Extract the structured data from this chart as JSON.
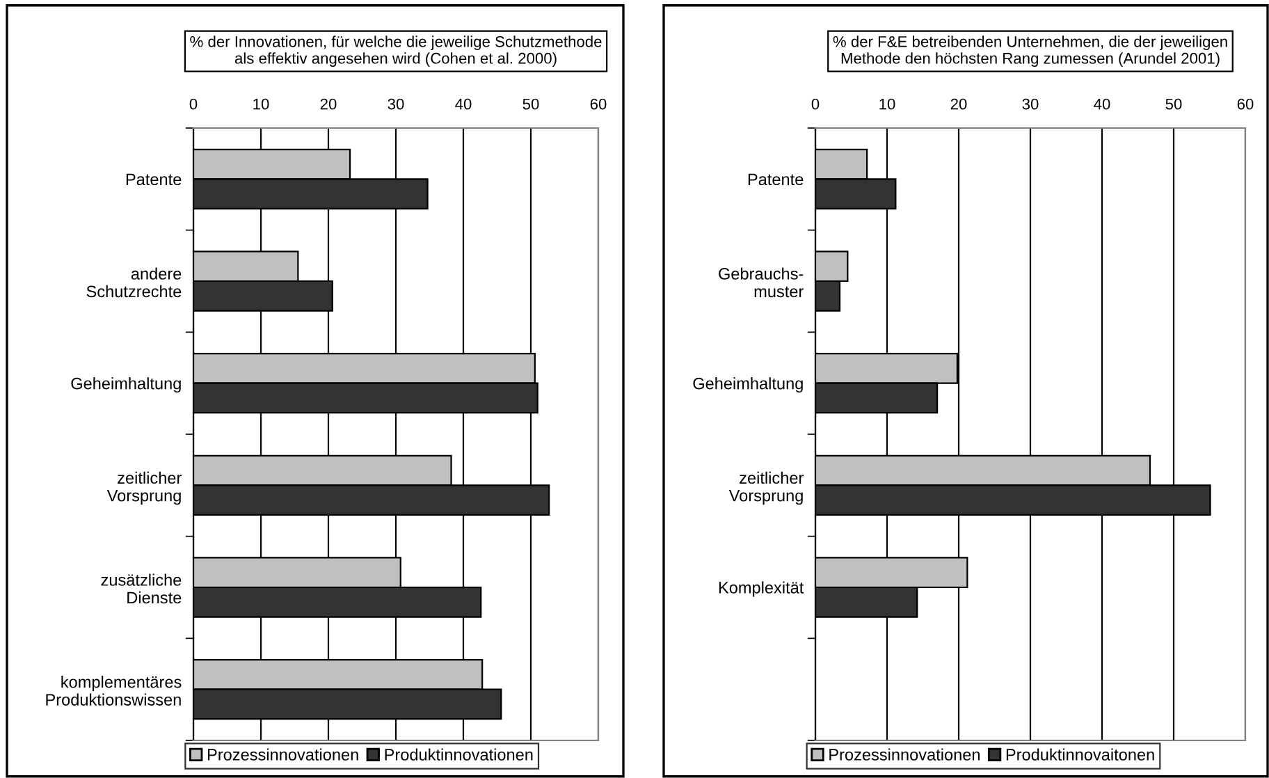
{
  "chart_data": [
    {
      "type": "bar",
      "orientation": "horizontal",
      "title": "% der Innovationen, für welche die jeweilige Schutzmethode\nals effektiv angesehen wird (Cohen et al. 2000)",
      "categories": [
        "Patente",
        "andere\nSchutzrechte",
        "Geheimhaltung",
        "zeitlicher\nVorsprung",
        "zusätzliche\nDienste",
        "komplementäres\nProduktionswissen"
      ],
      "series": [
        {
          "name": "Prozessinnovationen",
          "color": "#c0c0c0",
          "values": [
            23.2,
            15.5,
            50.6,
            38.2,
            30.7,
            42.8
          ]
        },
        {
          "name": "Produktinnovationen",
          "color": "#333333",
          "values": [
            34.7,
            20.6,
            51.0,
            52.7,
            42.6,
            45.6
          ]
        }
      ],
      "xlim": [
        0,
        60
      ],
      "xticks": [
        0,
        10,
        20,
        30,
        40,
        50,
        60
      ],
      "grid": "x",
      "legend": "bottom"
    },
    {
      "type": "bar",
      "orientation": "horizontal",
      "title": "% der F&E betreibenden Unternehmen, die der jeweiligen\nMethode den höchsten Rang zumessen (Arundel 2001)",
      "categories": [
        "Patente",
        "Gebrauchs-\nmuster",
        "Geheimhaltung",
        "zeitlicher\nVorsprung",
        "Komplexität",
        null
      ],
      "series": [
        {
          "name": "Prozessinnovationen",
          "color": "#c0c0c0",
          "values": [
            7.2,
            4.5,
            19.8,
            46.7,
            21.2,
            null
          ]
        },
        {
          "name": "Produktinnovaitonen",
          "color": "#333333",
          "values": [
            11.2,
            3.4,
            17.0,
            55.1,
            14.2,
            null
          ]
        }
      ],
      "xlim": [
        0,
        60
      ],
      "xticks": [
        0,
        10,
        20,
        30,
        40,
        50,
        60
      ],
      "grid": "x",
      "legend": "bottom"
    }
  ]
}
